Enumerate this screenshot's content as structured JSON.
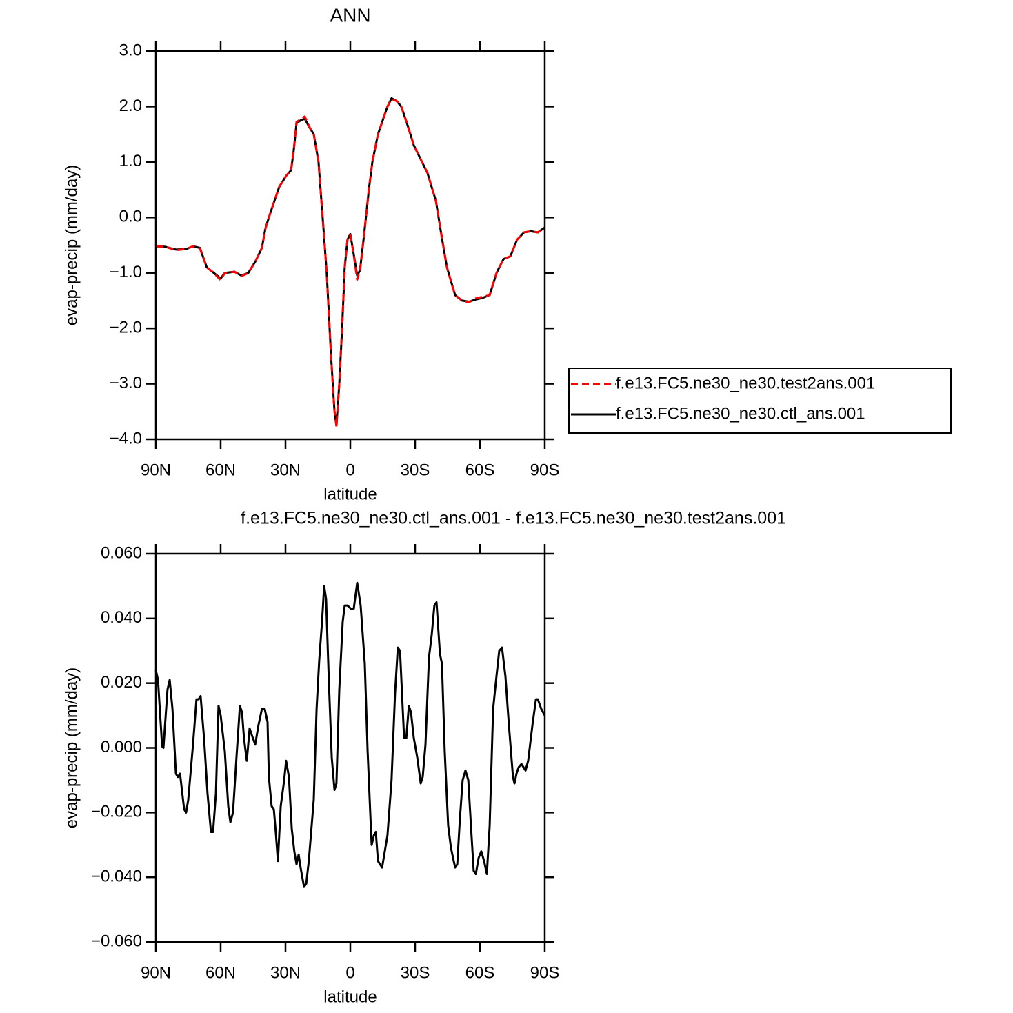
{
  "chart_data": [
    {
      "type": "line",
      "title": "ANN",
      "x_label": "latitude",
      "y_label": "evap-precip (mm/day)",
      "xlim": [
        90,
        -90
      ],
      "xticks": [
        {
          "value": 90,
          "label": "90N"
        },
        {
          "value": 60,
          "label": "60N"
        },
        {
          "value": 30,
          "label": "30N"
        },
        0,
        {
          "value": -30,
          "label": "30S"
        },
        {
          "value": -60,
          "label": "60S"
        },
        {
          "value": -90,
          "label": "90S"
        }
      ],
      "ylim": [
        -4,
        3
      ],
      "yticks": [
        {
          "value": 3,
          "label": "3.0"
        },
        {
          "value": 2,
          "label": "2.0"
        },
        {
          "value": 1,
          "label": "1.0"
        },
        {
          "value": 0,
          "label": "0.0"
        },
        {
          "value": -1,
          "label": "−1.0"
        },
        {
          "value": -2,
          "label": "−2.0"
        },
        {
          "value": -3,
          "label": "−3.0"
        },
        {
          "value": -4,
          "label": "−4.0"
        }
      ],
      "legend": "right",
      "x": [
        90,
        85.5,
        80.7,
        76.0,
        72.8,
        69.6,
        66.4,
        63.2,
        60.0,
        58.1,
        53.6,
        50.4,
        47.2,
        44.0,
        40.9,
        39.3,
        37.7,
        35.1,
        32.9,
        29.7,
        27.4,
        26.2,
        24.9,
        23.0,
        21.1,
        18.5,
        16.9,
        14.7,
        12.8,
        10.9,
        8.9,
        7.3,
        6.4,
        5.1,
        3.8,
        2.6,
        1.3,
        0,
        -1.3,
        -3.2,
        -4.5,
        -6.4,
        -8.6,
        -10.2,
        -12.8,
        -15.0,
        -17.2,
        -19.1,
        -21.4,
        -23.6,
        -26.2,
        -29.4,
        -33.2,
        -35.7,
        -39.6,
        -42.1,
        -44.7,
        -48.5,
        -51.7,
        -54.9,
        -58.1,
        -61.3,
        -64.5,
        -67.7,
        -70.9,
        -74.1,
        -77.2,
        -80.4,
        -83.6,
        -86.8,
        -90
      ],
      "series": [
        {
          "name": "f.e13.FC5.ne30_ne30.test2ans.001",
          "color": "#ff0000",
          "linestyle": "dashed",
          "values": [
            -0.52,
            -0.53,
            -0.59,
            -0.57,
            -0.52,
            -0.56,
            -0.9,
            -1.0,
            -1.13,
            -1.0,
            -0.98,
            -1.06,
            -1.0,
            -0.8,
            -0.55,
            -0.2,
            0.0,
            0.3,
            0.55,
            0.75,
            0.85,
            1.2,
            1.72,
            1.77,
            1.82,
            1.6,
            1.5,
            1.0,
            0.0,
            -1.0,
            -2.5,
            -3.5,
            -3.77,
            -3.0,
            -2.0,
            -0.9,
            -0.4,
            -0.32,
            -0.6,
            -1.12,
            -0.95,
            -0.3,
            0.5,
            1.0,
            1.5,
            1.75,
            2.0,
            2.13,
            2.1,
            2.0,
            1.7,
            1.3,
            1.0,
            0.8,
            0.3,
            -0.3,
            -0.9,
            -1.4,
            -1.5,
            -1.53,
            -1.46,
            -1.43,
            -1.4,
            -1.0,
            -0.75,
            -0.7,
            -0.4,
            -0.27,
            -0.25,
            -0.27,
            -0.18
          ]
        },
        {
          "name": "f.e13.FC5.ne30_ne30.ctl_ans.001",
          "color": "#000000",
          "linestyle": "solid",
          "values": [
            -0.52,
            -0.53,
            -0.58,
            -0.57,
            -0.52,
            -0.55,
            -0.9,
            -1.0,
            -1.1,
            -1.0,
            -0.98,
            -1.05,
            -1.0,
            -0.8,
            -0.55,
            -0.2,
            0.0,
            0.3,
            0.55,
            0.75,
            0.85,
            1.2,
            1.7,
            1.75,
            1.78,
            1.6,
            1.5,
            1.0,
            0.0,
            -1.0,
            -2.5,
            -3.5,
            -3.75,
            -3.0,
            -2.0,
            -0.9,
            -0.4,
            -0.3,
            -0.6,
            -1.05,
            -0.95,
            -0.3,
            0.5,
            1.0,
            1.5,
            1.75,
            2.0,
            2.15,
            2.1,
            2.0,
            1.7,
            1.3,
            1.0,
            0.8,
            0.3,
            -0.3,
            -0.9,
            -1.4,
            -1.5,
            -1.52,
            -1.48,
            -1.45,
            -1.4,
            -1.0,
            -0.75,
            -0.7,
            -0.4,
            -0.27,
            -0.25,
            -0.27,
            -0.18
          ]
        }
      ]
    },
    {
      "type": "line",
      "title": "f.e13.FC5.ne30_ne30.ctl_ans.001 - f.e13.FC5.ne30_ne30.test2ans.001",
      "x_label": "latitude",
      "y_label": "evap-precip (mm/day)",
      "xlim": [
        90,
        -90
      ],
      "xticks": [
        {
          "value": 90,
          "label": "90N"
        },
        {
          "value": 60,
          "label": "60N"
        },
        {
          "value": 30,
          "label": "30N"
        },
        0,
        {
          "value": -30,
          "label": "30S"
        },
        {
          "value": -60,
          "label": "60S"
        },
        {
          "value": -90,
          "label": "90S"
        }
      ],
      "ylim": [
        -0.06,
        0.06
      ],
      "yticks": [
        {
          "value": 0.06,
          "label": "0.060"
        },
        {
          "value": 0.04,
          "label": "0.040"
        },
        {
          "value": 0.02,
          "label": "0.020"
        },
        {
          "value": 0,
          "label": "0.000"
        },
        {
          "value": -0.02,
          "label": "−0.020"
        },
        {
          "value": -0.04,
          "label": "−0.040"
        },
        {
          "value": -0.06,
          "label": "−0.060"
        }
      ],
      "x": [
        90,
        89.0,
        87.1,
        86.5,
        84.6,
        83.6,
        82.3,
        80.7,
        79.8,
        78.8,
        76.9,
        76.0,
        75.0,
        72.8,
        71.2,
        70.2,
        69.3,
        67.7,
        66.1,
        64.5,
        63.5,
        62.2,
        61.0,
        60.0,
        58.1,
        56.5,
        55.5,
        54.3,
        52.7,
        51.1,
        50.1,
        49.2,
        47.9,
        46.6,
        45.6,
        44.0,
        42.5,
        40.9,
        39.6,
        38.3,
        37.7,
        36.4,
        35.4,
        34.5,
        33.5,
        32.2,
        30.6,
        29.7,
        28.4,
        27.1,
        25.9,
        24.9,
        23.9,
        23.0,
        21.4,
        20.4,
        19.2,
        16.9,
        15.6,
        14.4,
        13.1,
        12.1,
        11.2,
        9.9,
        8.6,
        7.3,
        6.4,
        5.1,
        3.5,
        2.6,
        1.3,
        -0.3,
        -1.6,
        -2.6,
        -3.2,
        -4.8,
        -6.7,
        -8.0,
        -9.3,
        -9.9,
        -10.9,
        -11.8,
        -12.8,
        -14.7,
        -17.2,
        -19.1,
        -20.7,
        -22.0,
        -23.0,
        -24.9,
        -25.9,
        -27.1,
        -28.1,
        -29.4,
        -31.0,
        -32.6,
        -33.5,
        -34.8,
        -36.4,
        -37.7,
        -38.9,
        -39.9,
        -41.5,
        -42.4,
        -43.7,
        -45.3,
        -46.6,
        -48.5,
        -49.5,
        -50.7,
        -52.0,
        -53.3,
        -54.6,
        -55.9,
        -57.1,
        -58.1,
        -59.4,
        -60.6,
        -61.9,
        -63.2,
        -64.5,
        -66.1,
        -67.3,
        -68.9,
        -70.2,
        -71.8,
        -73.4,
        -75.3,
        -76.0,
        -76.9,
        -77.9,
        -79.2,
        -81.1,
        -82.3,
        -84.3,
        -85.9,
        -86.8,
        -88.4,
        -90
      ],
      "series": [
        {
          "color": "#000000",
          "linestyle": "solid",
          "values": [
            0.024,
            0.021,
            0.0005,
            0,
            0.018,
            0.021,
            0.012,
            -0.008,
            -0.009,
            -0.008,
            -0.019,
            -0.02,
            -0.016,
            0.001,
            0.015,
            0.015,
            0.016,
            0.003,
            -0.014,
            -0.026,
            -0.026,
            -0.014,
            0.013,
            0.01,
            -0.001,
            -0.018,
            -0.023,
            -0.02,
            -0.003,
            0.013,
            0.011,
            0.003,
            -0.004,
            0.006,
            0.004,
            0.001,
            0.007,
            0.012,
            0.012,
            0.008,
            -0.009,
            -0.018,
            -0.019,
            -0.026,
            -0.035,
            -0.018,
            -0.01,
            -0.004,
            -0.009,
            -0.025,
            -0.032,
            -0.036,
            -0.033,
            -0.037,
            -0.043,
            -0.042,
            -0.035,
            -0.016,
            0.012,
            0.027,
            0.039,
            0.05,
            0.046,
            0.02,
            -0.003,
            -0.013,
            -0.011,
            0.018,
            0.039,
            0.044,
            0.044,
            0.043,
            0.043,
            0.048,
            0.051,
            0.044,
            0.026,
            -0.001,
            -0.021,
            -0.03,
            -0.027,
            -0.026,
            -0.035,
            -0.037,
            -0.027,
            -0.01,
            0.017,
            0.031,
            0.03,
            0.003,
            0.003,
            0.013,
            0.011,
            0.003,
            -0.003,
            -0.011,
            -0.009,
            0.001,
            0.028,
            0.035,
            0.044,
            0.045,
            0.029,
            0.026,
            -0.001,
            -0.024,
            -0.031,
            -0.037,
            -0.036,
            -0.022,
            -0.01,
            -0.007,
            -0.01,
            -0.025,
            -0.038,
            -0.039,
            -0.034,
            -0.032,
            -0.035,
            -0.039,
            -0.024,
            0.012,
            0.02,
            0.03,
            0.031,
            0.022,
            0.007,
            -0.009,
            -0.011,
            -0.008,
            -0.006,
            -0.005,
            -0.007,
            -0.004,
            0.007,
            0.015,
            0.015,
            0.012,
            0.01
          ]
        }
      ]
    }
  ]
}
